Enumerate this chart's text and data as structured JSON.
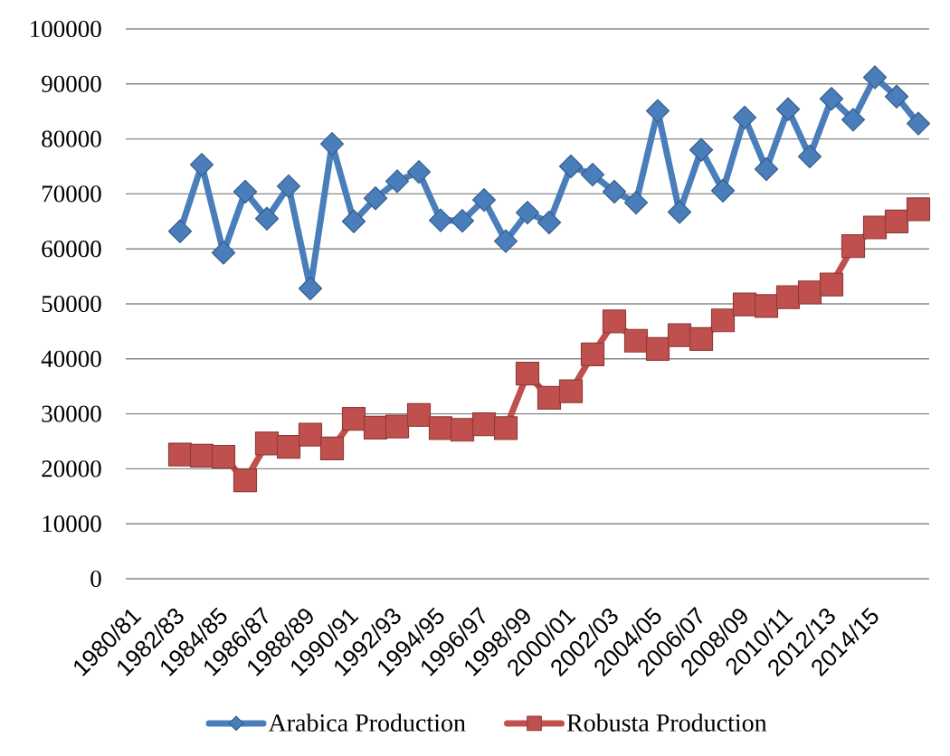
{
  "chart_data": {
    "type": "line",
    "categories": [
      "1980/81",
      null,
      "1982/83",
      null,
      "1984/85",
      null,
      "1986/87",
      null,
      "1988/89",
      null,
      "1990/91",
      null,
      "1992/93",
      null,
      "1994/95",
      null,
      "1996/97",
      null,
      "1998/99",
      null,
      "2000/01",
      null,
      "2002/03",
      null,
      "2004/05",
      null,
      "2006/07",
      null,
      "2008/09",
      null,
      "2010/11",
      null,
      "2012/13",
      null,
      "2014/15",
      null,
      null
    ],
    "series": [
      {
        "name": "Arabica Production",
        "color": "#4a7ebb",
        "marker": "diamond",
        "values": [
          null,
          null,
          63200,
          75300,
          59300,
          70400,
          65500,
          71400,
          52800,
          79100,
          65000,
          69200,
          72300,
          74000,
          65200,
          65100,
          68900,
          61400,
          66600,
          64800,
          75000,
          73500,
          70400,
          68400,
          85100,
          66700,
          78000,
          70600,
          83900,
          74500,
          85400,
          76800,
          87300,
          83500,
          91200,
          87700,
          82800
        ]
      },
      {
        "name": "Robusta Production",
        "color": "#c0504d",
        "marker": "square",
        "values": [
          null,
          null,
          22600,
          22400,
          22200,
          17900,
          24600,
          24000,
          26200,
          23700,
          29100,
          27500,
          27700,
          29800,
          27400,
          27100,
          28100,
          27400,
          37300,
          32900,
          34100,
          40800,
          46800,
          43300,
          41800,
          44300,
          43600,
          47000,
          49900,
          49600,
          51200,
          52100,
          53500,
          60500,
          63900,
          65000,
          67200
        ]
      }
    ],
    "ylim": [
      0,
      100000
    ],
    "yticks": [
      0,
      10000,
      20000,
      30000,
      40000,
      50000,
      60000,
      70000,
      80000,
      90000,
      100000
    ],
    "grid": "y",
    "legend": "bottom",
    "line_style": "solid"
  }
}
